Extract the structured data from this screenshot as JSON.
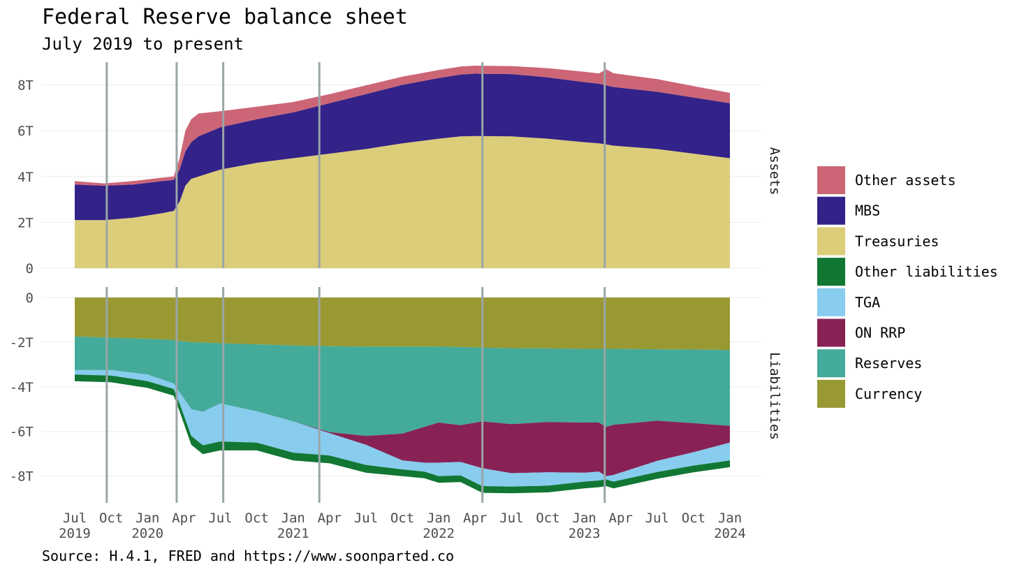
{
  "chart_data": {
    "type": "area",
    "title": "Federal Reserve balance sheet",
    "subtitle": "July 2019 to present",
    "caption": "Source: H.4.1, FRED and https://www.soonparted.co",
    "facets": [
      "Assets",
      "Liabilities"
    ],
    "x_ticks": [
      "Jul 2019",
      "Oct",
      "Jan 2020",
      "Apr",
      "Jul",
      "Oct",
      "Jan 2021",
      "Apr",
      "Jul",
      "Oct",
      "Jan 2022",
      "Apr",
      "Jul",
      "Oct",
      "Jan 2023",
      "Apr",
      "Jul",
      "Oct",
      "Jan 2024"
    ],
    "x_tick_positions": [
      2019.5,
      2019.75,
      2020.0,
      2020.25,
      2020.5,
      2020.75,
      2021.0,
      2021.25,
      2021.5,
      2021.75,
      2022.0,
      2022.25,
      2022.5,
      2022.75,
      2023.0,
      2023.25,
      2023.5,
      2023.75,
      2024.0
    ],
    "x_tick_lines": [
      [
        "Jul",
        "2019"
      ],
      [
        "Oct",
        ""
      ],
      [
        "Jan",
        "2020"
      ],
      [
        "Apr",
        ""
      ],
      [
        "Jul",
        ""
      ],
      [
        "Oct",
        ""
      ],
      [
        "Jan",
        "2021"
      ],
      [
        "Apr",
        ""
      ],
      [
        "Jul",
        ""
      ],
      [
        "Oct",
        ""
      ],
      [
        "Jan",
        "2022"
      ],
      [
        "Apr",
        ""
      ],
      [
        "Jul",
        ""
      ],
      [
        "Oct",
        ""
      ],
      [
        "Jan",
        "2023"
      ],
      [
        "Apr",
        ""
      ],
      [
        "Jul",
        ""
      ],
      [
        "Oct",
        ""
      ],
      [
        "Jan",
        "2024"
      ]
    ],
    "xlim": [
      2019.5,
      2024.0
    ],
    "vertical_lines": [
      2019.72,
      2020.2,
      2020.52,
      2021.18,
      2022.3,
      2023.14
    ],
    "assets": {
      "ylim": [
        0,
        8.9
      ],
      "y_ticks": [
        0,
        2,
        4,
        6,
        8
      ],
      "y_tick_labels": [
        "0",
        "2T",
        "4T",
        "6T",
        "8T"
      ],
      "x": [
        2019.5,
        2019.7,
        2019.9,
        2020.1,
        2020.18,
        2020.22,
        2020.26,
        2020.3,
        2020.35,
        2020.5,
        2020.75,
        2021.0,
        2021.25,
        2021.5,
        2021.75,
        2022.0,
        2022.15,
        2022.25,
        2022.5,
        2022.75,
        2023.0,
        2023.1,
        2023.15,
        2023.2,
        2023.5,
        2023.75,
        2024.0
      ],
      "series": [
        {
          "name": "Treasuries",
          "color": "#dccd7a",
          "values": [
            2.1,
            2.1,
            2.2,
            2.4,
            2.5,
            2.9,
            3.6,
            3.9,
            4.0,
            4.3,
            4.6,
            4.8,
            5.0,
            5.2,
            5.45,
            5.65,
            5.75,
            5.77,
            5.75,
            5.65,
            5.5,
            5.45,
            5.4,
            5.35,
            5.2,
            5.0,
            4.8
          ]
        },
        {
          "name": "MBS",
          "color": "#332288",
          "values": [
            1.55,
            1.5,
            1.45,
            1.4,
            1.35,
            1.4,
            1.5,
            1.6,
            1.75,
            1.85,
            1.9,
            2.0,
            2.2,
            2.4,
            2.55,
            2.65,
            2.7,
            2.72,
            2.72,
            2.68,
            2.62,
            2.6,
            2.58,
            2.56,
            2.5,
            2.45,
            2.4
          ]
        },
        {
          "name": "Other assets",
          "color": "#cc6677",
          "values": [
            0.15,
            0.1,
            0.15,
            0.15,
            0.15,
            0.5,
            0.9,
            1.0,
            1.0,
            0.7,
            0.55,
            0.45,
            0.4,
            0.38,
            0.36,
            0.35,
            0.35,
            0.35,
            0.35,
            0.4,
            0.45,
            0.45,
            0.7,
            0.6,
            0.55,
            0.5,
            0.45
          ]
        }
      ]
    },
    "liabilities": {
      "ylim": [
        -9.2,
        0
      ],
      "y_ticks": [
        0,
        -2,
        -4,
        -6,
        -8
      ],
      "y_tick_labels": [
        "0",
        "-2T",
        "-4T",
        "-6T",
        "-8T"
      ],
      "x": [
        2019.5,
        2019.75,
        2020.0,
        2020.18,
        2020.22,
        2020.3,
        2020.38,
        2020.5,
        2020.75,
        2021.0,
        2021.25,
        2021.5,
        2021.75,
        2021.9,
        2022.0,
        2022.15,
        2022.3,
        2022.5,
        2022.75,
        2023.0,
        2023.1,
        2023.15,
        2023.2,
        2023.5,
        2023.75,
        2024.0
      ],
      "series": [
        {
          "name": "Currency",
          "color": "#999933",
          "values": [
            -1.75,
            -1.8,
            -1.85,
            -1.9,
            -1.95,
            -2.0,
            -2.02,
            -2.05,
            -2.1,
            -2.15,
            -2.18,
            -2.2,
            -2.2,
            -2.2,
            -2.2,
            -2.22,
            -2.25,
            -2.27,
            -2.28,
            -2.3,
            -2.3,
            -2.3,
            -2.3,
            -2.32,
            -2.33,
            -2.35
          ]
        },
        {
          "name": "Reserves",
          "color": "#44aa99",
          "values": [
            -1.5,
            -1.45,
            -1.6,
            -1.95,
            -2.3,
            -3.0,
            -3.1,
            -2.7,
            -3.0,
            -3.4,
            -3.85,
            -4.0,
            -3.9,
            -3.6,
            -3.4,
            -3.5,
            -3.3,
            -3.4,
            -3.3,
            -3.3,
            -3.3,
            -3.5,
            -3.4,
            -3.2,
            -3.3,
            -3.4
          ]
        },
        {
          "name": "ON RRP",
          "color": "#882255",
          "values": [
            0,
            0,
            0,
            0,
            0,
            0,
            0,
            0,
            0,
            0,
            -0.05,
            -0.4,
            -1.2,
            -1.6,
            -1.8,
            -1.65,
            -2.1,
            -2.2,
            -2.25,
            -2.25,
            -2.2,
            -2.2,
            -2.25,
            -1.8,
            -1.3,
            -0.75
          ]
        },
        {
          "name": "TGA",
          "color": "#88ccee",
          "values": [
            -0.2,
            -0.25,
            -0.3,
            -0.25,
            -0.5,
            -1.2,
            -1.5,
            -1.7,
            -1.4,
            -1.4,
            -1.0,
            -0.9,
            -0.4,
            -0.4,
            -0.6,
            -0.6,
            -0.8,
            -0.6,
            -0.6,
            -0.4,
            -0.4,
            -0.15,
            -0.3,
            -0.5,
            -0.6,
            -0.8
          ]
        },
        {
          "name": "Other liabilities",
          "color": "#117733",
          "values": [
            -0.3,
            -0.3,
            -0.3,
            -0.3,
            -0.35,
            -0.4,
            -0.4,
            -0.4,
            -0.35,
            -0.35,
            -0.35,
            -0.35,
            -0.3,
            -0.3,
            -0.3,
            -0.3,
            -0.3,
            -0.3,
            -0.3,
            -0.3,
            -0.3,
            -0.3,
            -0.3,
            -0.3,
            -0.3,
            -0.3
          ]
        }
      ]
    },
    "legend": {
      "placement": "right",
      "entries": [
        {
          "label": "Other assets",
          "color": "#cc6677"
        },
        {
          "label": "MBS",
          "color": "#332288"
        },
        {
          "label": "Treasuries",
          "color": "#dccd7a"
        },
        {
          "label": "Other liabilities",
          "color": "#117733"
        },
        {
          "label": "TGA",
          "color": "#88ccee"
        },
        {
          "label": "ON RRP",
          "color": "#882255"
        },
        {
          "label": "Reserves",
          "color": "#44aa99"
        },
        {
          "label": "Currency",
          "color": "#999933"
        }
      ]
    }
  }
}
